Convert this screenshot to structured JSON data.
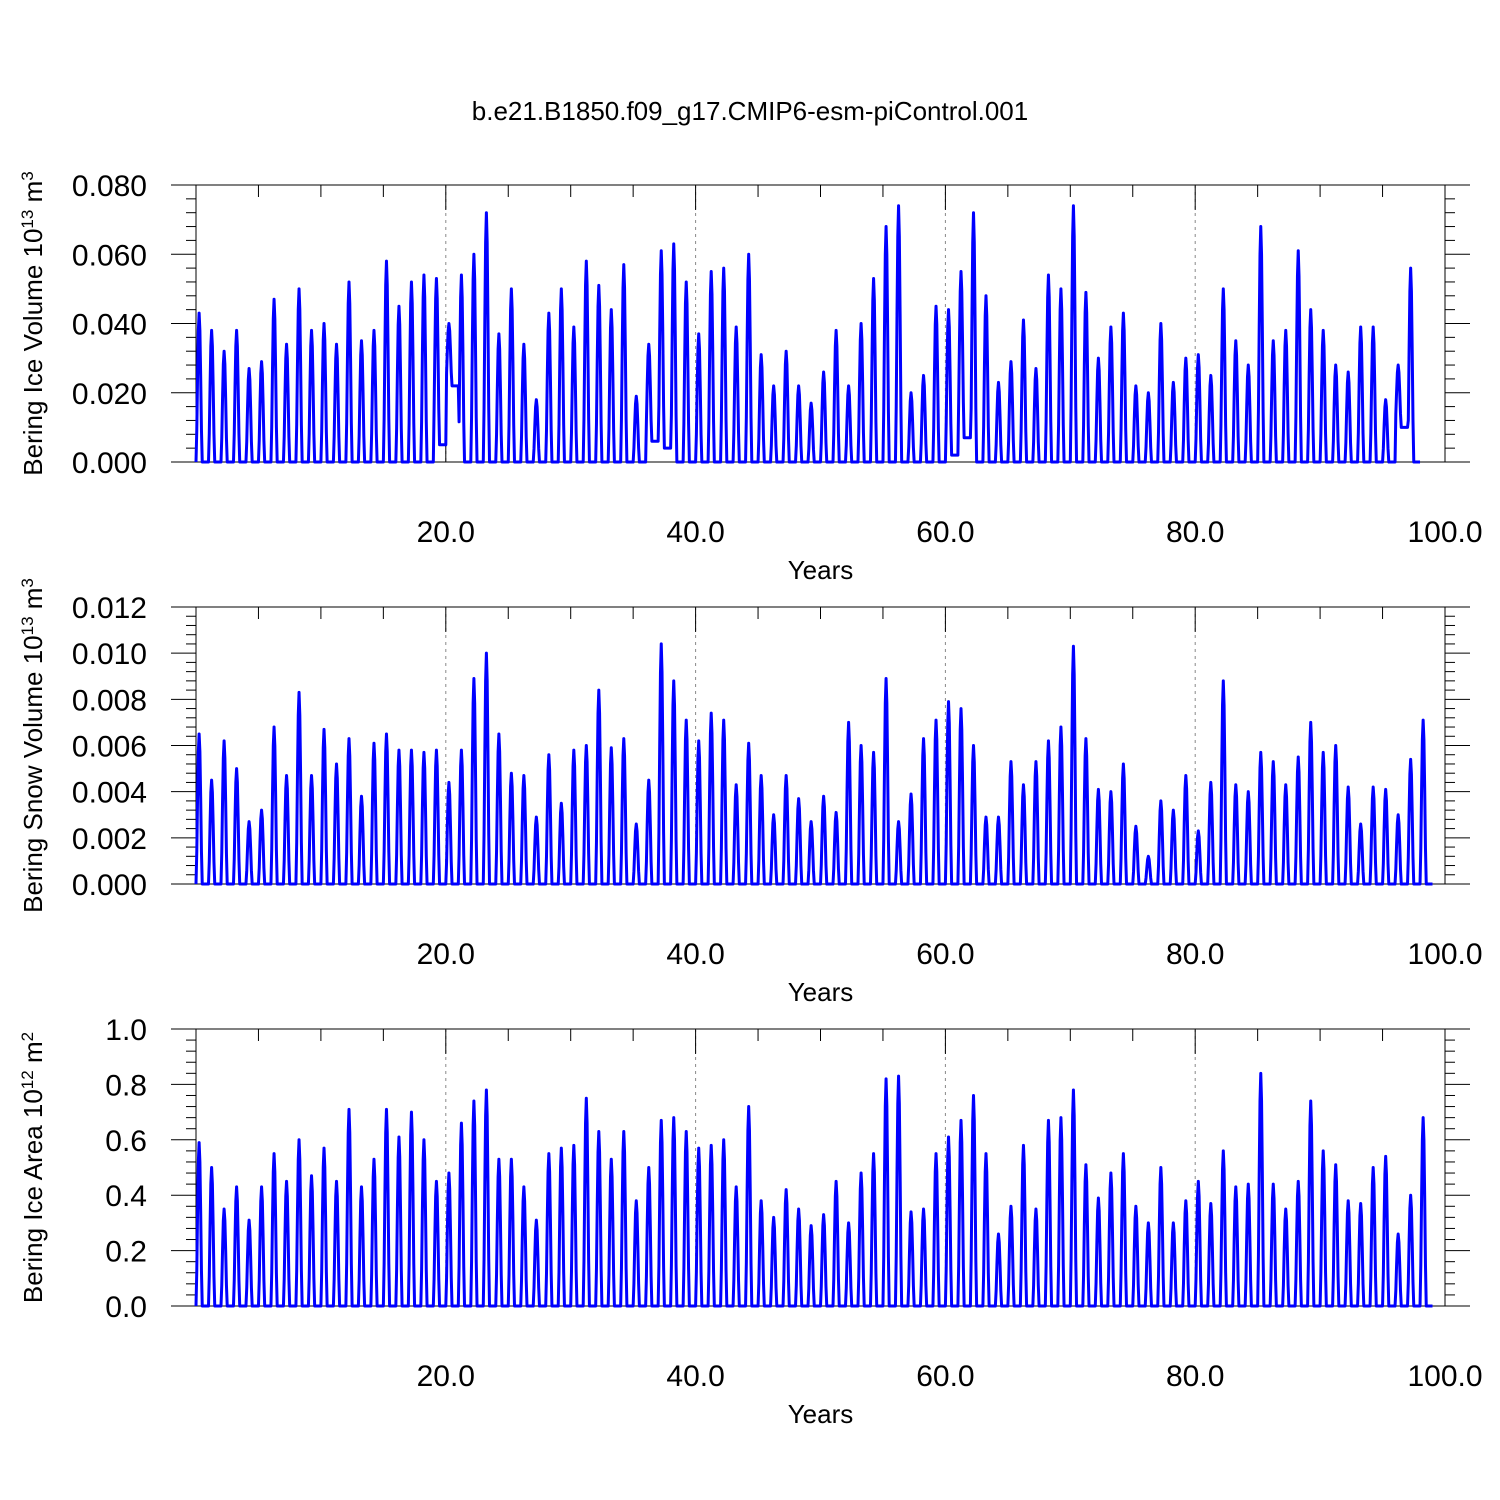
{
  "title": "b.e21.B1850.f09_g17.CMIP6-esm-piControl.001",
  "colors": {
    "series": "#0000ff",
    "axis": "#000000",
    "grid": "#888888"
  },
  "chart_data": [
    {
      "type": "line",
      "ylabel": "Bering Ice Volume 10",
      "ylabel_exp": "13",
      "ylabel_unit": " m",
      "ylabel_unit_exp": "3",
      "xlabel": "Years",
      "xlim": [
        0,
        100
      ],
      "ylim": [
        0,
        0.08
      ],
      "xticks": [
        20,
        40,
        60,
        80,
        100
      ],
      "xtick_labels": [
        "20.0",
        "40.0",
        "60.0",
        "80.0",
        "100.0"
      ],
      "yticks": [
        0,
        0.02,
        0.04,
        0.06,
        0.08
      ],
      "ytick_labels": [
        "0.000",
        "0.020",
        "0.040",
        "0.060",
        "0.080"
      ],
      "vertical_dashed_lines": [
        20,
        40,
        60,
        80
      ],
      "series": [
        {
          "peaks": [
            0.043,
            0.038,
            0.032,
            0.038,
            0.027,
            0.029,
            0.047,
            0.034,
            0.05,
            0.038,
            0.04,
            0.034,
            0.052,
            0.035,
            0.038,
            0.058,
            0.045,
            0.052,
            0.054,
            0.053,
            0.04,
            0.054,
            0.06,
            0.072,
            0.037,
            0.05,
            0.034,
            0.018,
            0.043,
            0.05,
            0.039,
            0.058,
            0.051,
            0.044,
            0.057,
            0.019,
            0.034,
            0.061,
            0.063,
            0.052,
            0.037,
            0.055,
            0.056,
            0.039,
            0.06,
            0.031,
            0.022,
            0.032,
            0.022,
            0.017,
            0.026,
            0.038,
            0.022,
            0.04,
            0.053,
            0.068,
            0.074,
            0.02,
            0.025,
            0.045,
            0.044,
            0.055,
            0.072,
            0.048,
            0.023,
            0.029,
            0.041,
            0.027,
            0.054,
            0.05,
            0.074,
            0.049,
            0.03,
            0.039,
            0.043,
            0.022,
            0.02,
            0.04,
            0.023,
            0.03,
            0.031,
            0.025,
            0.05,
            0.035,
            0.028,
            0.068,
            0.035,
            0.038,
            0.061,
            0.044,
            0.038,
            0.028,
            0.026,
            0.039,
            0.039,
            0.018,
            0.028,
            0.056
          ],
          "troughs": [
            0,
            0,
            0,
            0,
            0,
            0,
            0,
            0,
            0,
            0,
            0,
            0,
            0,
            0,
            0,
            0,
            0,
            0,
            0,
            0.005,
            0.022,
            0,
            0,
            0,
            0,
            0,
            0,
            0,
            0,
            0,
            0,
            0,
            0,
            0,
            0,
            0,
            0.006,
            0.004,
            0,
            0,
            0,
            0,
            0,
            0,
            0,
            0,
            0,
            0,
            0,
            0,
            0,
            0,
            0,
            0,
            0,
            0,
            0,
            0,
            0,
            0,
            0.002,
            0.007,
            0,
            0,
            0,
            0,
            0,
            0,
            0,
            0,
            0,
            0,
            0,
            0,
            0,
            0,
            0,
            0,
            0,
            0,
            0,
            0,
            0,
            0,
            0,
            0,
            0,
            0,
            0,
            0,
            0,
            0,
            0,
            0,
            0,
            0,
            0.01
          ]
        }
      ]
    },
    {
      "type": "line",
      "ylabel": "Bering Snow Volume 10",
      "ylabel_exp": "13",
      "ylabel_unit": " m",
      "ylabel_unit_exp": "3",
      "xlabel": "Years",
      "xlim": [
        0,
        100
      ],
      "ylim": [
        0,
        0.012
      ],
      "xticks": [
        20,
        40,
        60,
        80,
        100
      ],
      "xtick_labels": [
        "20.0",
        "40.0",
        "60.0",
        "80.0",
        "100.0"
      ],
      "yticks": [
        0,
        0.002,
        0.004,
        0.006,
        0.008,
        0.01,
        0.012
      ],
      "ytick_labels": [
        "0.000",
        "0.002",
        "0.004",
        "0.006",
        "0.008",
        "0.010",
        "0.012"
      ],
      "vertical_dashed_lines": [
        20,
        40,
        60,
        80
      ],
      "series": [
        {
          "peaks": [
            0.0065,
            0.0045,
            0.0062,
            0.005,
            0.0027,
            0.0032,
            0.0068,
            0.0047,
            0.0083,
            0.0047,
            0.0067,
            0.0052,
            0.0063,
            0.0038,
            0.0061,
            0.0065,
            0.0058,
            0.0058,
            0.0057,
            0.0058,
            0.0044,
            0.0058,
            0.0089,
            0.01,
            0.0065,
            0.0048,
            0.0047,
            0.0029,
            0.0056,
            0.0035,
            0.0058,
            0.006,
            0.0084,
            0.0059,
            0.0063,
            0.0026,
            0.0045,
            0.0104,
            0.0088,
            0.0071,
            0.0062,
            0.0074,
            0.0071,
            0.0043,
            0.0061,
            0.0047,
            0.003,
            0.0047,
            0.0037,
            0.0027,
            0.0038,
            0.0031,
            0.007,
            0.006,
            0.0057,
            0.0089,
            0.0027,
            0.0039,
            0.0063,
            0.0071,
            0.0079,
            0.0076,
            0.006,
            0.0029,
            0.0029,
            0.0053,
            0.0043,
            0.0053,
            0.0062,
            0.0068,
            0.0103,
            0.0063,
            0.0041,
            0.004,
            0.0052,
            0.0025,
            0.0012,
            0.0036,
            0.0032,
            0.0047,
            0.0023,
            0.0044,
            0.0088,
            0.0043,
            0.004,
            0.0057,
            0.0053,
            0.0043,
            0.0055,
            0.007,
            0.0057,
            0.006,
            0.0042,
            0.0026,
            0.0042,
            0.0041,
            0.003,
            0.0054,
            0.0071
          ]
        }
      ]
    },
    {
      "type": "line",
      "ylabel": "Bering Ice Area 10",
      "ylabel_exp": "12",
      "ylabel_unit": " m",
      "ylabel_unit_exp": "2",
      "xlabel": "Years",
      "xlim": [
        0,
        100
      ],
      "ylim": [
        0,
        1.0
      ],
      "xticks": [
        20,
        40,
        60,
        80,
        100
      ],
      "xtick_labels": [
        "20.0",
        "40.0",
        "60.0",
        "80.0",
        "100.0"
      ],
      "yticks": [
        0,
        0.2,
        0.4,
        0.6,
        0.8,
        1.0
      ],
      "ytick_labels": [
        "0.0",
        "0.2",
        "0.4",
        "0.6",
        "0.8",
        "1.0"
      ],
      "vertical_dashed_lines": [
        20,
        40,
        60,
        80
      ],
      "series": [
        {
          "peaks": [
            0.59,
            0.5,
            0.35,
            0.43,
            0.31,
            0.43,
            0.55,
            0.45,
            0.6,
            0.47,
            0.57,
            0.45,
            0.71,
            0.43,
            0.53,
            0.71,
            0.61,
            0.7,
            0.6,
            0.45,
            0.48,
            0.66,
            0.74,
            0.78,
            0.53,
            0.53,
            0.43,
            0.31,
            0.55,
            0.57,
            0.58,
            0.75,
            0.63,
            0.53,
            0.63,
            0.38,
            0.5,
            0.67,
            0.68,
            0.63,
            0.57,
            0.58,
            0.6,
            0.43,
            0.72,
            0.38,
            0.32,
            0.42,
            0.35,
            0.29,
            0.33,
            0.45,
            0.3,
            0.48,
            0.55,
            0.82,
            0.83,
            0.34,
            0.35,
            0.55,
            0.61,
            0.67,
            0.76,
            0.55,
            0.26,
            0.36,
            0.58,
            0.35,
            0.67,
            0.68,
            0.78,
            0.51,
            0.39,
            0.48,
            0.55,
            0.36,
            0.3,
            0.5,
            0.3,
            0.38,
            0.45,
            0.37,
            0.56,
            0.43,
            0.44,
            0.84,
            0.44,
            0.35,
            0.45,
            0.74,
            0.56,
            0.51,
            0.38,
            0.37,
            0.5,
            0.54,
            0.26,
            0.4,
            0.68
          ]
        }
      ]
    }
  ]
}
